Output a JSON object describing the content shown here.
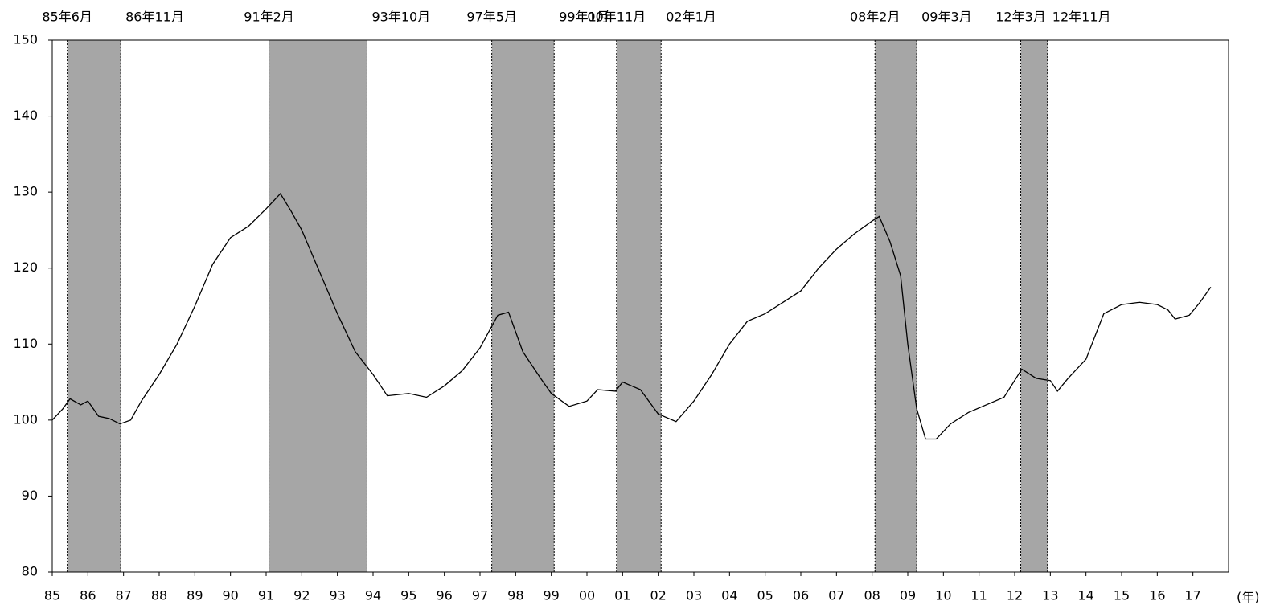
{
  "chart_data": {
    "type": "line",
    "x_label": "(年)",
    "xlim": [
      1985,
      2018
    ],
    "ylim": [
      80,
      150
    ],
    "yticks": [
      80,
      90,
      100,
      110,
      120,
      130,
      140,
      150
    ],
    "xticks": [
      {
        "value": 1985,
        "label": "85"
      },
      {
        "value": 1986,
        "label": "86"
      },
      {
        "value": 1987,
        "label": "87"
      },
      {
        "value": 1988,
        "label": "88"
      },
      {
        "value": 1989,
        "label": "89"
      },
      {
        "value": 1990,
        "label": "90"
      },
      {
        "value": 1991,
        "label": "91"
      },
      {
        "value": 1992,
        "label": "92"
      },
      {
        "value": 1993,
        "label": "93"
      },
      {
        "value": 1994,
        "label": "94"
      },
      {
        "value": 1995,
        "label": "95"
      },
      {
        "value": 1996,
        "label": "96"
      },
      {
        "value": 1997,
        "label": "97"
      },
      {
        "value": 1998,
        "label": "98"
      },
      {
        "value": 1999,
        "label": "99"
      },
      {
        "value": 2000,
        "label": "00"
      },
      {
        "value": 2001,
        "label": "01"
      },
      {
        "value": 2002,
        "label": "02"
      },
      {
        "value": 2003,
        "label": "03"
      },
      {
        "value": 2004,
        "label": "04"
      },
      {
        "value": 2005,
        "label": "05"
      },
      {
        "value": 2006,
        "label": "06"
      },
      {
        "value": 2007,
        "label": "07"
      },
      {
        "value": 2008,
        "label": "08"
      },
      {
        "value": 2009,
        "label": "09"
      },
      {
        "value": 2010,
        "label": "10"
      },
      {
        "value": 2011,
        "label": "11"
      },
      {
        "value": 2012,
        "label": "12"
      },
      {
        "value": 2013,
        "label": "13"
      },
      {
        "value": 2014,
        "label": "14"
      },
      {
        "value": 2015,
        "label": "15"
      },
      {
        "value": 2016,
        "label": "16"
      },
      {
        "value": 2017,
        "label": "17"
      }
    ],
    "shaded_color": "#a6a6a6",
    "shaded_periods": [
      {
        "start": 1985.42,
        "end": 1986.92,
        "start_label": "85年6月",
        "end_label": "86年11月"
      },
      {
        "start": 1991.08,
        "end": 1993.83,
        "start_label": "91年2月",
        "end_label": "93年10月"
      },
      {
        "start": 1997.33,
        "end": 1999.08,
        "start_label": "97年5月",
        "end_label": "99年1月"
      },
      {
        "start": 2000.83,
        "end": 2002.08,
        "start_label": "00年11月",
        "end_label": "02年1月"
      },
      {
        "start": 2008.08,
        "end": 2009.25,
        "start_label": "08年2月",
        "end_label": "09年3月"
      },
      {
        "start": 2012.17,
        "end": 2012.92,
        "start_label": "12年3月",
        "end_label": "12年11月"
      }
    ],
    "color": "#000000",
    "x": [
      1985.0,
      1985.3,
      1985.5,
      1985.8,
      1986.0,
      1986.3,
      1986.6,
      1986.9,
      1987.2,
      1987.5,
      1988.0,
      1988.5,
      1989.0,
      1989.5,
      1990.0,
      1990.5,
      1991.0,
      1991.4,
      1991.7,
      1992.0,
      1992.5,
      1993.0,
      1993.5,
      1994.0,
      1994.4,
      1995.0,
      1995.5,
      1996.0,
      1996.5,
      1997.0,
      1997.5,
      1997.8,
      1998.2,
      1998.7,
      1999.0,
      1999.5,
      2000.0,
      2000.3,
      2000.8,
      2001.0,
      2001.5,
      2002.0,
      2002.5,
      2003.0,
      2003.5,
      2004.0,
      2004.5,
      2005.0,
      2005.5,
      2006.0,
      2006.5,
      2007.0,
      2007.5,
      2008.0,
      2008.2,
      2008.5,
      2008.8,
      2009.0,
      2009.25,
      2009.5,
      2009.8,
      2010.2,
      2010.7,
      2011.2,
      2011.7,
      2012.2,
      2012.6,
      2013.0,
      2013.2,
      2013.5,
      2014.0,
      2014.5,
      2015.0,
      2015.5,
      2016.0,
      2016.3,
      2016.5,
      2016.9,
      2017.2,
      2017.5
    ],
    "values": [
      100,
      101.5,
      102.8,
      102,
      102.5,
      100.5,
      100.2,
      99.5,
      100,
      102.5,
      106,
      110,
      115,
      120.5,
      124,
      125.5,
      127.8,
      129.8,
      127.5,
      125,
      119.5,
      114,
      109,
      106,
      103.2,
      103.5,
      103,
      104.5,
      106.5,
      109.5,
      113.8,
      114.2,
      109,
      105.5,
      103.5,
      101.8,
      102.5,
      104,
      103.8,
      105,
      104,
      100.8,
      99.8,
      102.5,
      106,
      110,
      113,
      114,
      115.5,
      117,
      120,
      122.5,
      124.5,
      126.2,
      126.8,
      123.5,
      119,
      110,
      101.5,
      97.5,
      97.5,
      99.5,
      101,
      102,
      103,
      106.7,
      105.5,
      105.2,
      103.8,
      105.5,
      108,
      114,
      115.2,
      115.5,
      115.2,
      114.5,
      113.3,
      113.8,
      115.5,
      117.5
    ]
  }
}
